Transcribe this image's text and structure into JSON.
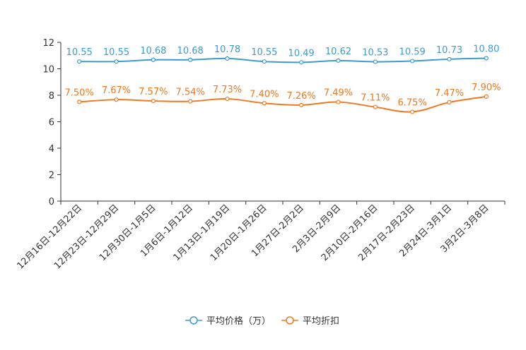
{
  "chart_data": {
    "type": "line",
    "title": "",
    "xlabel": "",
    "ylabel": "",
    "ylim": [
      0,
      12
    ],
    "yticks": [
      0,
      2,
      4,
      6,
      8,
      10,
      12
    ],
    "grid": false,
    "legend_position": "bottom-center",
    "categories": [
      "12月16日-12月22日",
      "12月23日-12月29日",
      "12月30日-1月5日",
      "1月6日-1月12日",
      "1月13日-1月19日",
      "1月20日-1月26日",
      "1月27日-2月2日",
      "2月3日-2月9日",
      "2月10日-2月16日",
      "2月17日-2月23日",
      "2月24日-3月1日",
      "3月2日-3月8日"
    ],
    "series": [
      {
        "name": "平均价格（万）",
        "color": "#3d9bd0",
        "values": [
          10.55,
          10.55,
          10.68,
          10.68,
          10.78,
          10.55,
          10.49,
          10.62,
          10.53,
          10.59,
          10.73,
          10.8
        ],
        "labels": [
          "10.55",
          "10.55",
          "10.68",
          "10.68",
          "10.78",
          "10.55",
          "10.49",
          "10.62",
          "10.53",
          "10.59",
          "10.73",
          "10.80"
        ]
      },
      {
        "name": "平均折扣",
        "color": "#f07820",
        "values": [
          7.5,
          7.67,
          7.57,
          7.54,
          7.73,
          7.4,
          7.26,
          7.49,
          7.11,
          6.75,
          7.47,
          7.9
        ],
        "labels": [
          "7.50%",
          "7.67%",
          "7.57%",
          "7.54%",
          "7.73%",
          "7.40%",
          "7.26%",
          "7.49%",
          "7.11%",
          "6.75%",
          "7.47%",
          "7.90%"
        ]
      }
    ]
  }
}
